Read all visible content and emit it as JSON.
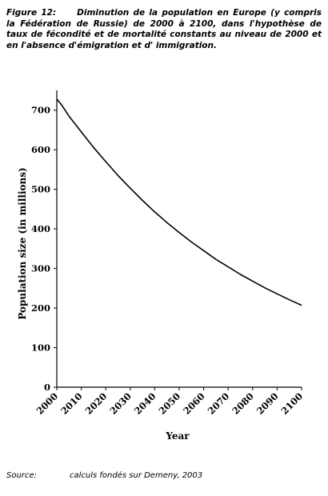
{
  "caption": {
    "label": "Figure 12:",
    "text": "Diminution de la population en Europe (y compris la Fédération de Russie) de 2000 à 2100, dans l'hypothèse de taux de fécondité et de mortalité constants au niveau de 2000 et en l'absence d'émigration et d' immigration."
  },
  "source": {
    "label": "Source:",
    "text": "calculs fondés sur Demeny, 2003"
  },
  "chart_data": {
    "type": "line",
    "xlabel": "Year",
    "ylabel": "Population size (in millions)",
    "xlim": [
      2000,
      2100
    ],
    "ylim": [
      0,
      750
    ],
    "x_ticks": [
      2000,
      2010,
      2020,
      2030,
      2040,
      2050,
      2060,
      2070,
      2080,
      2090,
      2100
    ],
    "y_ticks": [
      0,
      100,
      200,
      300,
      400,
      500,
      600,
      700
    ],
    "grid": false,
    "legend": "none",
    "series": [
      {
        "x": [
          2000,
          2002,
          2005,
          2010,
          2015,
          2020,
          2025,
          2030,
          2035,
          2040,
          2045,
          2050,
          2055,
          2060,
          2065,
          2070,
          2075,
          2080,
          2085,
          2090,
          2095,
          2100
        ],
        "values": [
          728,
          713,
          685,
          645,
          606,
          570,
          535,
          503,
          472,
          443,
          416,
          391,
          367,
          345,
          323,
          304,
          285,
          268,
          251,
          236,
          221,
          207
        ],
        "color": "#000000"
      }
    ]
  }
}
